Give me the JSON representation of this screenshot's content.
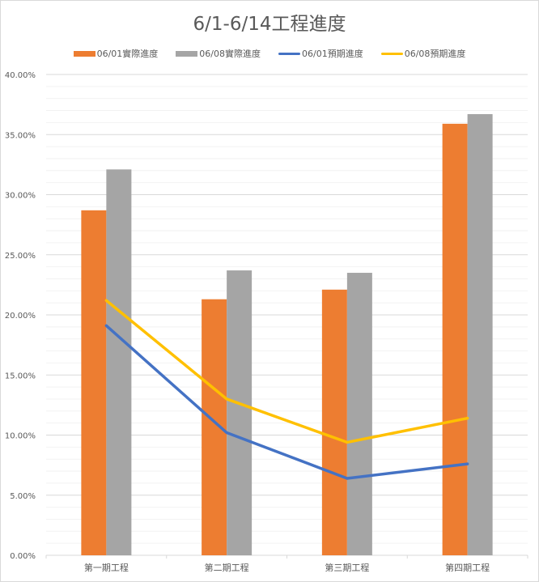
{
  "chart_data": {
    "type": "bar",
    "title": "6/1-6/14工程進度",
    "xlabel": "",
    "ylabel": "",
    "ylim": [
      0,
      0.4
    ],
    "yticks": [
      "0.00%",
      "5.00%",
      "10.00%",
      "15.00%",
      "20.00%",
      "25.00%",
      "30.00%",
      "35.00%",
      "40.00%"
    ],
    "grid": true,
    "legend_position": "top",
    "categories": [
      "第一期工程",
      "第二期工程",
      "第三期工程",
      "第四期工程"
    ],
    "series": [
      {
        "name": "06/01實際進度",
        "type": "bar",
        "color": "#ed7d31",
        "values": [
          0.287,
          0.213,
          0.221,
          0.359
        ]
      },
      {
        "name": "06/08實際進度",
        "type": "bar",
        "color": "#a5a5a5",
        "values": [
          0.321,
          0.237,
          0.235,
          0.367
        ]
      },
      {
        "name": "06/01預期進度",
        "type": "line",
        "color": "#4472c4",
        "values": [
          0.191,
          0.102,
          0.064,
          0.076
        ]
      },
      {
        "name": "06/08預期進度",
        "type": "line",
        "color": "#ffc000",
        "values": [
          0.212,
          0.13,
          0.094,
          0.114
        ]
      }
    ]
  }
}
